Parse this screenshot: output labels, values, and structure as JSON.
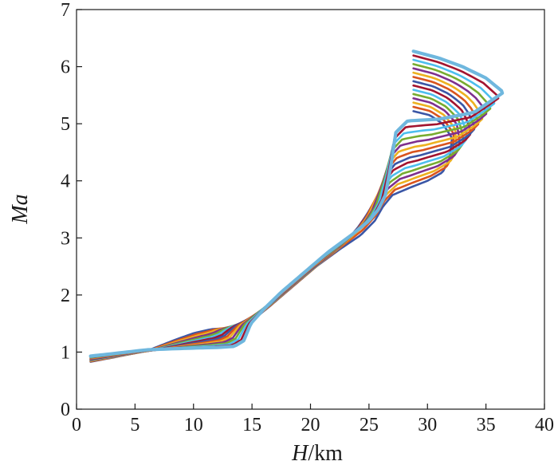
{
  "chart_data": {
    "type": "line",
    "title": "",
    "xlabel": {
      "var": "H",
      "unit": "/km"
    },
    "ylabel": {
      "var": "Ma",
      "unit": ""
    },
    "xlim": [
      0,
      40
    ],
    "ylim": [
      0,
      7
    ],
    "xticks": [
      0,
      5,
      10,
      15,
      20,
      25,
      30,
      35,
      40
    ],
    "yticks": [
      0,
      1,
      2,
      3,
      4,
      5,
      6,
      7
    ],
    "grid": false,
    "legend": "none",
    "colors": [
      "#3a56a6",
      "#d9541e",
      "#edb120",
      "#7e2f8e",
      "#77ac30",
      "#4dbeee",
      "#a2142f"
    ],
    "series_count": 15,
    "curve_first": [
      [
        1.2,
        0.83
      ],
      [
        3,
        0.9
      ],
      [
        6,
        1.02
      ],
      [
        8.5,
        1.22
      ],
      [
        10,
        1.33
      ],
      [
        11.5,
        1.4
      ],
      [
        13,
        1.42
      ],
      [
        14.3,
        1.47
      ],
      [
        15,
        1.55
      ],
      [
        16.5,
        1.8
      ],
      [
        18.5,
        2.15
      ],
      [
        20.5,
        2.5
      ],
      [
        22.5,
        2.8
      ],
      [
        24.3,
        3.05
      ],
      [
        25.5,
        3.3
      ],
      [
        26.2,
        3.55
      ],
      [
        27,
        3.75
      ],
      [
        28.5,
        3.88
      ],
      [
        30,
        4.0
      ],
      [
        31.3,
        4.15
      ],
      [
        31.9,
        4.4
      ],
      [
        32.1,
        4.75
      ],
      [
        31.3,
        5.0
      ],
      [
        30.2,
        5.15
      ],
      [
        29.2,
        5.2
      ],
      [
        28.8,
        5.22
      ]
    ],
    "curve_last": [
      [
        1.2,
        0.93
      ],
      [
        3,
        0.97
      ],
      [
        6,
        1.04
      ],
      [
        8.5,
        1.06
      ],
      [
        10,
        1.07
      ],
      [
        12,
        1.08
      ],
      [
        13.5,
        1.1
      ],
      [
        14.3,
        1.2
      ],
      [
        14.9,
        1.5
      ],
      [
        16,
        1.75
      ],
      [
        17.5,
        2.05
      ],
      [
        19.5,
        2.4
      ],
      [
        21.5,
        2.75
      ],
      [
        23.5,
        3.05
      ],
      [
        25,
        3.3
      ],
      [
        25.8,
        3.5
      ],
      [
        26.4,
        3.75
      ],
      [
        26.9,
        4.3
      ],
      [
        27.3,
        4.85
      ],
      [
        28.3,
        5.05
      ],
      [
        31,
        5.08
      ],
      [
        34,
        5.2
      ],
      [
        36.5,
        5.55
      ],
      [
        35,
        5.8
      ],
      [
        33,
        6.0
      ],
      [
        31,
        6.15
      ],
      [
        28.8,
        6.27
      ]
    ]
  }
}
